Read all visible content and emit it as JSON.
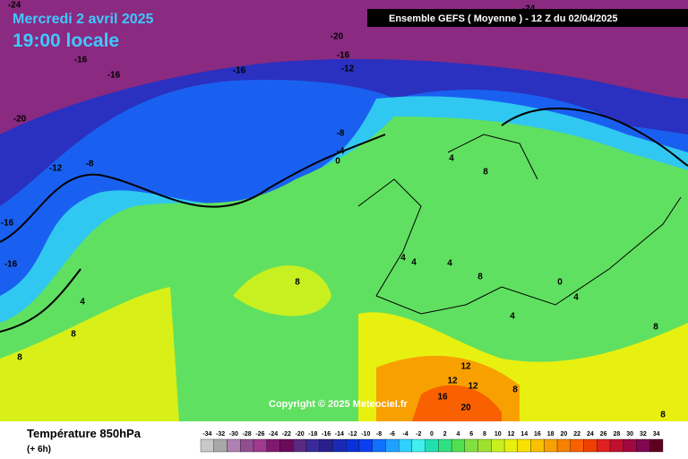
{
  "header": {
    "date": "Mercredi 2 avril 2025",
    "time": "19:00 locale",
    "model": "Ensemble GEFS  ( Moyenne )  -  12 Z du 02/04/2025"
  },
  "copyright": "Copyright © 2025 Meteociel.fr",
  "footer": {
    "title": "Température 850hPa",
    "lead": "(+ 6h)"
  },
  "contour_labels": [
    -24,
    -24,
    -20,
    -16,
    -16,
    -16,
    -20,
    -16,
    -12,
    -8,
    -4,
    0,
    -8,
    -12,
    -16,
    -16,
    4,
    8,
    8,
    8,
    4,
    4,
    4,
    8,
    4,
    0,
    4,
    8,
    4,
    8,
    12,
    12,
    12,
    16,
    20,
    8,
    8
  ],
  "legend": {
    "values": [
      -34,
      -32,
      -30,
      -28,
      -26,
      -24,
      -22,
      -20,
      -18,
      -16,
      -14,
      -12,
      -10,
      -8,
      -6,
      -4,
      -2,
      0,
      2,
      4,
      6,
      8,
      10,
      12,
      14,
      16,
      18,
      20,
      22,
      24,
      26,
      28,
      30,
      32,
      34
    ],
    "colors": [
      "#c8c8c8",
      "#a8a8a8",
      "#b080b0",
      "#905090",
      "#a03a90",
      "#801870",
      "#6a0a5a",
      "#5a2a80",
      "#3a2a9a",
      "#28208c",
      "#1a2ab4",
      "#0a30d8",
      "#0a40f0",
      "#1070ff",
      "#20a0ff",
      "#30d0ff",
      "#40f0f0",
      "#20e0b0",
      "#30e080",
      "#50e050",
      "#80e040",
      "#a0e030",
      "#c8f020",
      "#e8f010",
      "#f8e000",
      "#f8c000",
      "#f8a000",
      "#f88000",
      "#f86000",
      "#f04000",
      "#e02020",
      "#c01030",
      "#a00840",
      "#800850",
      "#600020"
    ]
  }
}
